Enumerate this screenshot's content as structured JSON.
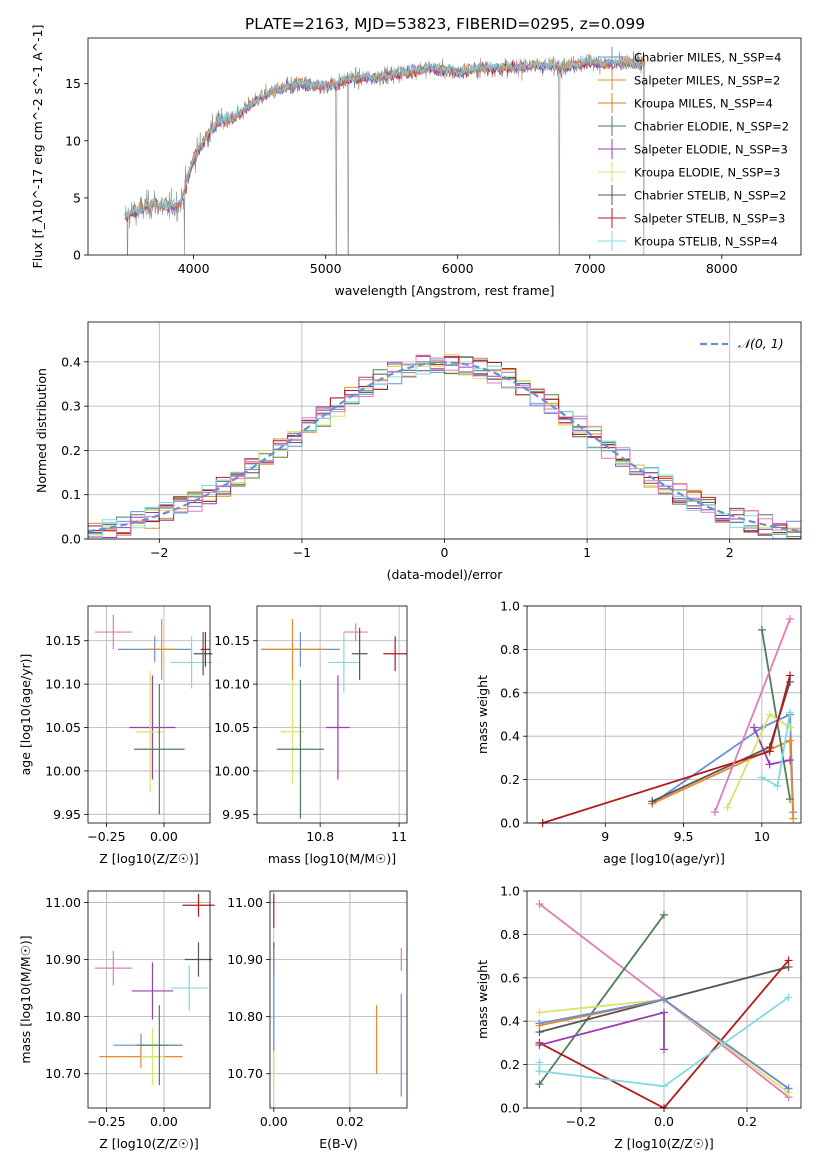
{
  "title": "PLATE=2163, MJD=53823, FIBERID=0295, z=0.099",
  "colors": {
    "series": [
      "#6a8fd6",
      "#e8892b",
      "#e07a22",
      "#4f7f56",
      "#9b3fb5",
      "#d9e36a",
      "#555555",
      "#b31b1b",
      "#7fdbe0",
      "#e27bb8",
      "#888888"
    ]
  },
  "chart_data": [
    {
      "id": "spectrum",
      "type": "line",
      "xlabel": "wavelength [Angstrom, rest frame]",
      "ylabel": "Flux [f_λ10^-17 erg cm^-2 s^-1 A^-1]",
      "xlim": [
        3200,
        8600
      ],
      "ylim": [
        0,
        19
      ],
      "xticks": [
        4000,
        5000,
        6000,
        7000,
        8000
      ],
      "yticks": [
        0,
        5,
        10,
        15
      ],
      "grid": false,
      "legend_position": "right",
      "legend": [
        "Chabrier MILES, N_SSP=4",
        "Salpeter MILES, N_SSP=2",
        "Kroupa MILES, N_SSP=4",
        "Chabrier ELODIE, N_SSP=2",
        "Salpeter ELODIE, N_SSP=3",
        "Kroupa ELODIE, N_SSP=3",
        "Chabrier STELIB, N_SSP=2",
        "Salpeter STELIB, N_SSP=3",
        "Kroupa STELIB, N_SSP=4"
      ],
      "continuum": {
        "x": [
          3500,
          3600,
          3700,
          3800,
          3900,
          3950,
          4000,
          4100,
          4200,
          4300,
          4400,
          4500,
          4600,
          4800,
          5000,
          5200,
          5400,
          5600,
          5800,
          6000,
          6200,
          6400,
          6600,
          6800,
          7000,
          7200,
          7400
        ],
        "y": [
          3.5,
          4.0,
          4.5,
          4.2,
          4.5,
          6.5,
          8.5,
          10.5,
          11.8,
          12.0,
          12.8,
          13.8,
          14.3,
          15.0,
          14.8,
          15.4,
          15.6,
          16.0,
          16.4,
          16.0,
          16.4,
          16.4,
          16.6,
          16.5,
          16.9,
          16.7,
          16.9
        ]
      },
      "drops": [
        3500,
        3930,
        5080,
        5170,
        6770,
        7410
      ]
    },
    {
      "id": "residuals",
      "type": "bar",
      "xlabel": "(data-model)/error",
      "ylabel": "Normed distribution",
      "xlim": [
        -2.5,
        2.5
      ],
      "ylim": [
        0,
        0.49
      ],
      "xticks": [
        -2,
        -1,
        0,
        1,
        2
      ],
      "yticks": [
        0.0,
        0.1,
        0.2,
        0.3,
        0.4
      ],
      "grid": true,
      "legend_position": "top-right",
      "legend": [
        "𝒩(0, 1)"
      ]
    },
    {
      "id": "age_vs_Z",
      "type": "scatter",
      "xlabel": "Z [log10(Z/Z☉)]",
      "ylabel": "age [log10(age/yr)]",
      "xlim": [
        -0.33,
        0.2
      ],
      "ylim": [
        9.94,
        10.19
      ],
      "xticks": [
        -0.25,
        0.0
      ],
      "xticklabels": [
        "−0.25",
        "0.00"
      ],
      "yticks": [
        9.95,
        10.0,
        10.05,
        10.1,
        10.15
      ],
      "grid": true,
      "points": [
        {
          "x": -0.22,
          "y": 10.16,
          "xerr": 0.08,
          "yerr": 0.02,
          "c": 9
        },
        {
          "x": -0.04,
          "y": 10.14,
          "xerr": 0.16,
          "yerr": 0.015,
          "c": 0
        },
        {
          "x": -0.01,
          "y": 10.14,
          "xerr": 0.06,
          "yerr": 0.035,
          "c": 1
        },
        {
          "x": 0.12,
          "y": 10.125,
          "xerr": 0.09,
          "yerr": 0.03,
          "c": 8
        },
        {
          "x": 0.17,
          "y": 10.135,
          "xerr": 0.04,
          "yerr": 0.025,
          "c": 6
        },
        {
          "x": 0.18,
          "y": 10.14,
          "xerr": 0.02,
          "yerr": 0.02,
          "c": 7
        },
        {
          "x": -0.05,
          "y": 10.05,
          "xerr": 0.1,
          "yerr": 0.06,
          "c": 4
        },
        {
          "x": -0.06,
          "y": 10.045,
          "xerr": 0.06,
          "yerr": 0.07,
          "c": 5
        },
        {
          "x": -0.02,
          "y": 10.025,
          "xerr": 0.11,
          "yerr": 0.075,
          "c": 3
        }
      ]
    },
    {
      "id": "age_vs_mass",
      "type": "scatter",
      "xlabel": "mass [log10(M/M☉)]",
      "ylabel": "",
      "xlim": [
        10.64,
        11.02
      ],
      "ylim": [
        9.94,
        10.19
      ],
      "xticks": [
        10.8,
        11.0
      ],
      "yticks": [
        9.95,
        10.0,
        10.05,
        10.1,
        10.15
      ],
      "grid": true,
      "points": [
        {
          "x": 10.89,
          "y": 10.16,
          "xerr": 0.03,
          "yerr": 0.01,
          "c": 9
        },
        {
          "x": 10.75,
          "y": 10.14,
          "xerr": 0.1,
          "yerr": 0.02,
          "c": 0
        },
        {
          "x": 10.73,
          "y": 10.14,
          "xerr": 0.08,
          "yerr": 0.035,
          "c": 1
        },
        {
          "x": 10.86,
          "y": 10.125,
          "xerr": 0.04,
          "yerr": 0.035,
          "c": 8
        },
        {
          "x": 10.9,
          "y": 10.135,
          "xerr": 0.02,
          "yerr": 0.03,
          "c": 6
        },
        {
          "x": 10.99,
          "y": 10.135,
          "xerr": 0.03,
          "yerr": 0.02,
          "c": 7
        },
        {
          "x": 10.845,
          "y": 10.05,
          "xerr": 0.03,
          "yerr": 0.06,
          "c": 4
        },
        {
          "x": 10.73,
          "y": 10.045,
          "xerr": 0.03,
          "yerr": 0.06,
          "c": 5
        },
        {
          "x": 10.75,
          "y": 10.025,
          "xerr": 0.06,
          "yerr": 0.08,
          "c": 3
        }
      ]
    },
    {
      "id": "weight_vs_age",
      "type": "line",
      "xlabel": "age [log10(age/yr)]",
      "ylabel": "mass weight",
      "xlim": [
        8.5,
        10.25
      ],
      "ylim": [
        0,
        1
      ],
      "xticks": [
        9.0,
        9.5,
        10.0
      ],
      "yticks": [
        0.0,
        0.2,
        0.4,
        0.6,
        0.8,
        1.0
      ],
      "grid": true,
      "series": [
        {
          "c": 0,
          "x": [
            9.3,
            10.0,
            10.18,
            10.2
          ],
          "y": [
            0.09,
            0.44,
            0.5,
            0.05
          ]
        },
        {
          "c": 1,
          "x": [
            9.3,
            10.18,
            10.2
          ],
          "y": [
            0.09,
            0.38,
            0.02
          ]
        },
        {
          "c": 3,
          "x": [
            10.0,
            10.18
          ],
          "y": [
            0.89,
            0.11
          ]
        },
        {
          "c": 4,
          "x": [
            9.95,
            10.05,
            10.18
          ],
          "y": [
            0.44,
            0.27,
            0.29
          ]
        },
        {
          "c": 5,
          "x": [
            9.78,
            10.05,
            10.18
          ],
          "y": [
            0.07,
            0.5,
            0.44
          ]
        },
        {
          "c": 6,
          "x": [
            9.3,
            10.05,
            10.18
          ],
          "y": [
            0.1,
            0.35,
            0.65
          ]
        },
        {
          "c": 7,
          "x": [
            8.6,
            10.05,
            10.18
          ],
          "y": [
            0.0,
            0.33,
            0.68
          ]
        },
        {
          "c": 8,
          "x": [
            10.0,
            10.1,
            10.18
          ],
          "y": [
            0.21,
            0.17,
            0.51
          ]
        },
        {
          "c": 9,
          "x": [
            9.7,
            10.18
          ],
          "y": [
            0.05,
            0.94
          ]
        }
      ]
    },
    {
      "id": "mass_vs_Z",
      "type": "scatter",
      "xlabel": "Z [log10(Z/Z☉)]",
      "ylabel": "mass [log10(M/M☉)]",
      "xlim": [
        -0.33,
        0.2
      ],
      "ylim": [
        10.64,
        11.02
      ],
      "xticks": [
        -0.25,
        0.0
      ],
      "xticklabels": [
        "−0.25",
        "0.00"
      ],
      "yticks": [
        10.7,
        10.8,
        10.9,
        11.0
      ],
      "grid": true,
      "points": [
        {
          "x": -0.22,
          "y": 10.885,
          "xerr": 0.08,
          "yerr": 0.03,
          "c": 9
        },
        {
          "x": -0.1,
          "y": 10.75,
          "xerr": 0.12,
          "yerr": 0.02,
          "c": 0
        },
        {
          "x": -0.1,
          "y": 10.73,
          "xerr": 0.18,
          "yerr": 0.02,
          "c": 1
        },
        {
          "x": 0.11,
          "y": 10.85,
          "xerr": 0.08,
          "yerr": 0.04,
          "c": 8
        },
        {
          "x": 0.15,
          "y": 10.9,
          "xerr": 0.06,
          "yerr": 0.03,
          "c": 6
        },
        {
          "x": 0.15,
          "y": 10.995,
          "xerr": 0.07,
          "yerr": 0.02,
          "c": 7
        },
        {
          "x": -0.05,
          "y": 10.845,
          "xerr": 0.09,
          "yerr": 0.05,
          "c": 4
        },
        {
          "x": -0.05,
          "y": 10.73,
          "xerr": 0.05,
          "yerr": 0.05,
          "c": 5
        },
        {
          "x": -0.02,
          "y": 10.75,
          "xerr": 0.1,
          "yerr": 0.07,
          "c": 3
        }
      ]
    },
    {
      "id": "mass_vs_EBV",
      "type": "scatter",
      "xlabel": "E(B-V)",
      "ylabel": "",
      "xlim": [
        -0.001,
        0.035
      ],
      "ylim": [
        10.64,
        11.02
      ],
      "xticks": [
        0.0,
        0.02
      ],
      "xticklabels": [
        "0.00",
        "0.02"
      ],
      "yticks": [
        10.7,
        10.8,
        10.9,
        11.0
      ],
      "grid": true,
      "points": [
        {
          "x": 0.0,
          "y": 10.985,
          "xerr": 0,
          "yerr": 0.03,
          "c": 7
        },
        {
          "x": 0.0,
          "y": 10.9,
          "xerr": 0,
          "yerr": 0.03,
          "c": 6
        },
        {
          "x": 0.0,
          "y": 10.78,
          "xerr": 0,
          "yerr": 0.1,
          "c": 8
        },
        {
          "x": 0.0,
          "y": 10.72,
          "xerr": 0,
          "yerr": 0.04,
          "c": 5
        },
        {
          "x": 0.0,
          "y": 10.83,
          "xerr": 0,
          "yerr": 0.09,
          "c": 0
        },
        {
          "x": 0.027,
          "y": 10.76,
          "xerr": 0,
          "yerr": 0.06,
          "c": 1
        },
        {
          "x": 0.0335,
          "y": 10.9,
          "xerr": 0,
          "yerr": 0.02,
          "c": 9
        },
        {
          "x": 0.0335,
          "y": 10.75,
          "xerr": 0,
          "yerr": 0.09,
          "c": 0
        }
      ]
    },
    {
      "id": "weight_vs_Z",
      "type": "line",
      "xlabel": "Z [log10(Z/Z☉)]",
      "ylabel": "mass weight",
      "xlim": [
        -0.33,
        0.33
      ],
      "ylim": [
        0,
        1
      ],
      "xticks": [
        -0.2,
        0.0,
        0.2
      ],
      "xticklabels": [
        "−0.2",
        "0.0",
        "0.2"
      ],
      "yticks": [
        0.0,
        0.2,
        0.4,
        0.6,
        0.8,
        1.0
      ],
      "grid": true,
      "series": [
        {
          "c": 9,
          "x": [
            -0.3,
            0.0,
            0.3
          ],
          "y": [
            0.94,
            0.5,
            0.05
          ]
        },
        {
          "c": 3,
          "x": [
            -0.3,
            0.0
          ],
          "y": [
            0.11,
            0.89
          ]
        },
        {
          "c": 6,
          "x": [
            -0.3,
            0.3
          ],
          "y": [
            0.35,
            0.65
          ]
        },
        {
          "c": 7,
          "x": [
            -0.3,
            0.0,
            0.3
          ],
          "y": [
            0.3,
            0.0,
            0.68
          ]
        },
        {
          "c": 5,
          "x": [
            -0.3,
            0.0,
            0.3
          ],
          "y": [
            0.44,
            0.5,
            0.07
          ]
        },
        {
          "c": 1,
          "x": [
            -0.3,
            0.0,
            0.3
          ],
          "y": [
            0.38,
            0.5,
            0.09
          ]
        },
        {
          "c": 0,
          "x": [
            -0.3,
            0.0,
            0.3
          ],
          "y": [
            0.39,
            0.5,
            0.09
          ]
        },
        {
          "c": 4,
          "x": [
            -0.3,
            0.0,
            0.0
          ],
          "y": [
            0.29,
            0.44,
            0.27
          ]
        },
        {
          "c": 8,
          "x": [
            -0.3,
            0.0,
            0.3
          ],
          "y": [
            0.17,
            0.1,
            0.51
          ]
        },
        {
          "c": 8,
          "x": [
            -0.3,
            -0.3
          ],
          "y": [
            0.21,
            0.17
          ]
        }
      ]
    }
  ]
}
